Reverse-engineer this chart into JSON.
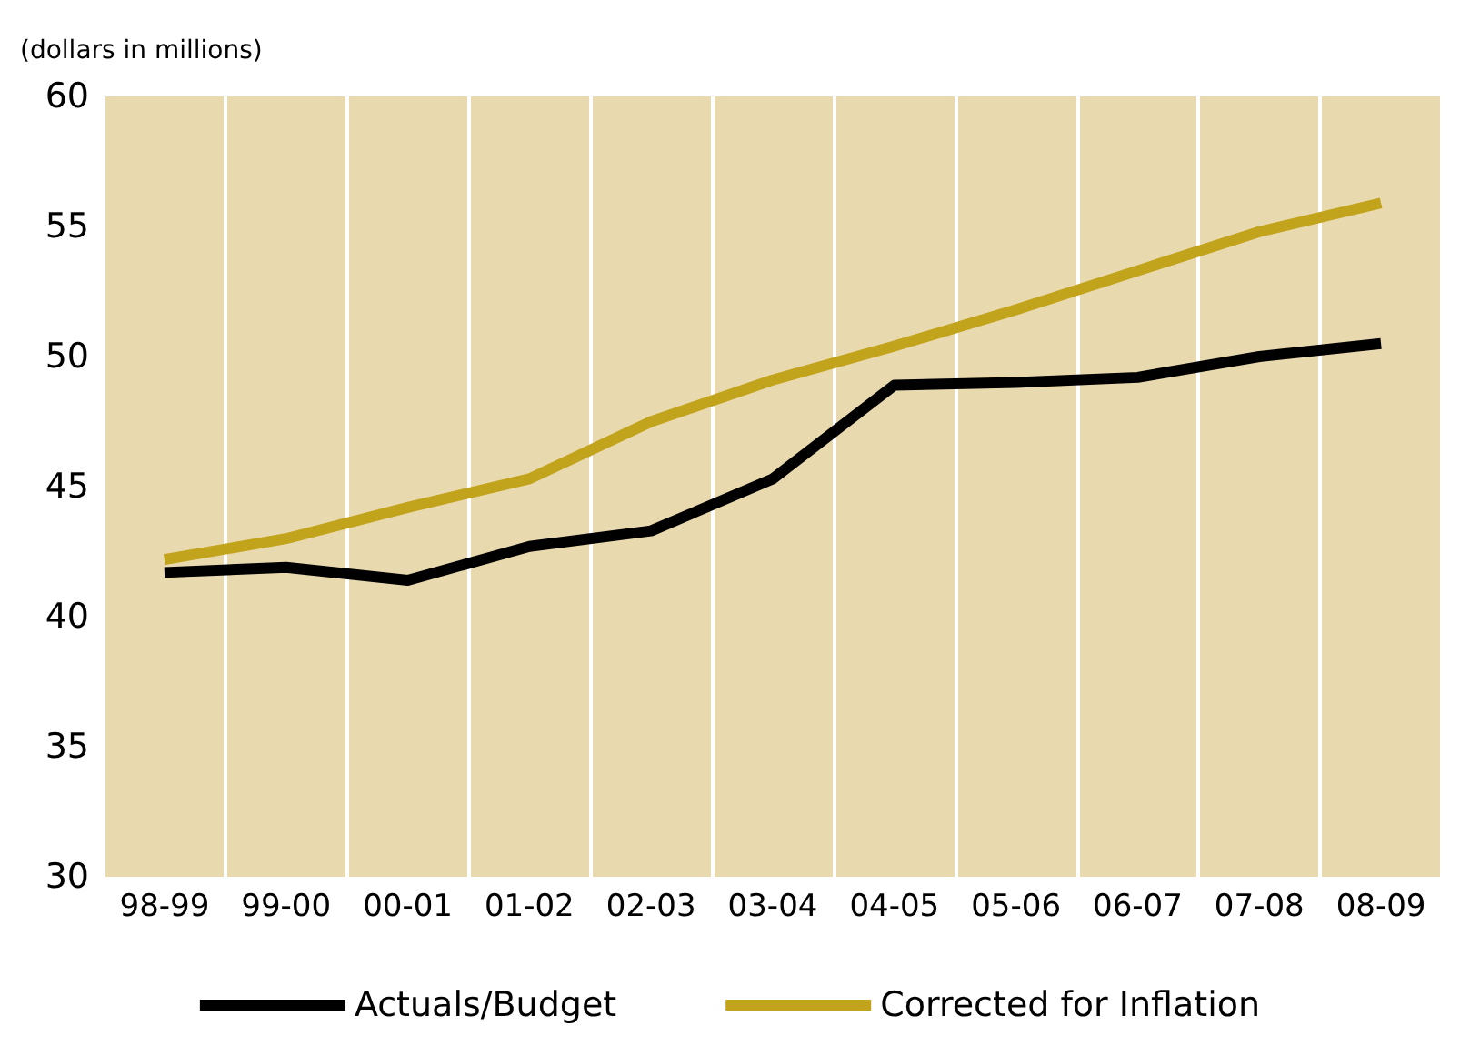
{
  "chart_data": {
    "type": "line",
    "ylabel": "(dollars in millions)",
    "categories": [
      "98-99",
      "99-00",
      "00-01",
      "01-02",
      "02-03",
      "03-04",
      "04-05",
      "05-06",
      "06-07",
      "07-08",
      "08-09"
    ],
    "series": [
      {
        "name": "Actuals/Budget",
        "color": "#000000",
        "values": [
          41.7,
          41.9,
          41.4,
          42.7,
          43.3,
          45.3,
          48.9,
          49.0,
          49.2,
          50.0,
          50.5
        ]
      },
      {
        "name": "Corrected for Inflation",
        "color": "#c2a41c",
        "values": [
          42.2,
          43.0,
          44.2,
          45.3,
          47.5,
          49.1,
          50.4,
          51.8,
          53.3,
          54.8,
          55.9
        ]
      }
    ],
    "ylim": [
      30,
      60
    ],
    "yticks": [
      30,
      35,
      40,
      45,
      50,
      55,
      60
    ],
    "grid": "x",
    "legend": "bottom",
    "marker": "none",
    "line_style": "solid"
  }
}
